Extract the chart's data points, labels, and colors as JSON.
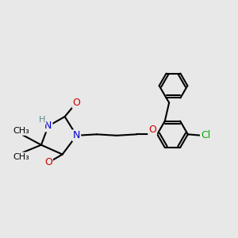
{
  "background_color": "#e8e8e8",
  "bond_color": "#000000",
  "bond_width": 1.5,
  "atom_colors": {
    "N": "#0000cc",
    "O": "#cc0000",
    "Cl": "#00aa00",
    "H": "#5a8a8a",
    "C": "#000000"
  },
  "font_size_atom": 9
}
